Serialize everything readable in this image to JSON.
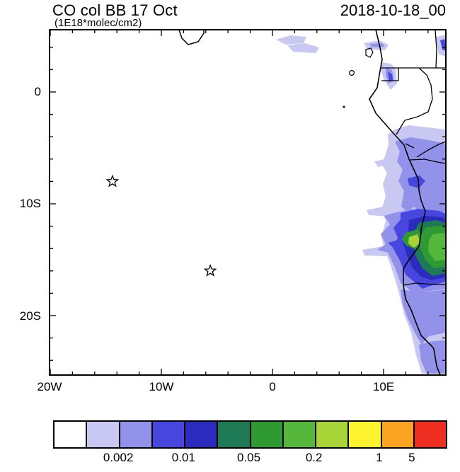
{
  "header": {
    "title": "CO col BB 17 Oct",
    "subtitle": "(1E18*molec/cm2)",
    "date": "2018-10-18_00"
  },
  "axes": {
    "y_ticks": [
      "0",
      "10S",
      "20S"
    ],
    "x_ticks": [
      "20W",
      "10W",
      "0",
      "10E"
    ]
  },
  "colorbar": {
    "colors": [
      "#ffffff",
      "#c8c8f2",
      "#9292ea",
      "#4747df",
      "#2b2bbd",
      "#1e7a55",
      "#2f9932",
      "#55b83d",
      "#a8d437",
      "#fdf32e",
      "#fba322",
      "#ee2e20"
    ],
    "labels": [
      "0.002",
      "0.01",
      "0.05",
      "0.2",
      "1",
      "5"
    ],
    "label_boundaries": [
      2,
      4,
      6,
      8,
      10,
      11
    ]
  },
  "chart_data": {
    "type": "heatmap",
    "subtype": "filled-contour-map",
    "title": "CO col BB 17 Oct",
    "units": "1E18*molec/cm2",
    "valid_time": "2018-10-18_00",
    "x_tick_labels": [
      "20W",
      "10W",
      "0",
      "10E"
    ],
    "y_tick_labels": [
      "0",
      "10S",
      "20S"
    ],
    "lon_range_deg_east": [
      -20.0,
      15.6
    ],
    "lat_range_deg_north": [
      -25.3,
      5.6
    ],
    "contour_levels": [
      0.001,
      0.002,
      0.005,
      0.01,
      0.02,
      0.05,
      0.1,
      0.2,
      0.5,
      1,
      5
    ],
    "palette": [
      "#ffffff",
      "#c8c8f2",
      "#9292ea",
      "#4747df",
      "#2b2bbd",
      "#1e7a55",
      "#2f9932",
      "#55b83d",
      "#a8d437",
      "#fdf32e",
      "#fba322",
      "#ee2e20"
    ],
    "markers": [
      {
        "symbol": "star",
        "lon_deg_east": -14.4,
        "lat_deg_north": -8.0
      },
      {
        "symbol": "star",
        "lon_deg_east": -5.6,
        "lat_deg_north": -16.0
      }
    ],
    "plume_regions": [
      {
        "region": "Angola coast ~10S-16S, 12E-15E",
        "approx_level_range": "0.02-0.2 with green core near the coast"
      },
      {
        "region": "Congo/DRC interior east of coast 2S-10S",
        "approx_level_range": "0.001-0.01"
      },
      {
        "region": "Namibia coast 17S-25S",
        "approx_level_range": "0.001-0.005"
      },
      {
        "region": "offshore streaks near 0-4N around 1E-4E and 9E-11E",
        "approx_level_range": "0.001-0.005"
      },
      {
        "region": "offshore lavender streaks at ~6S, 9.5S and 13.5S west of coast",
        "approx_level_range": "0.001-0.002"
      }
    ]
  }
}
